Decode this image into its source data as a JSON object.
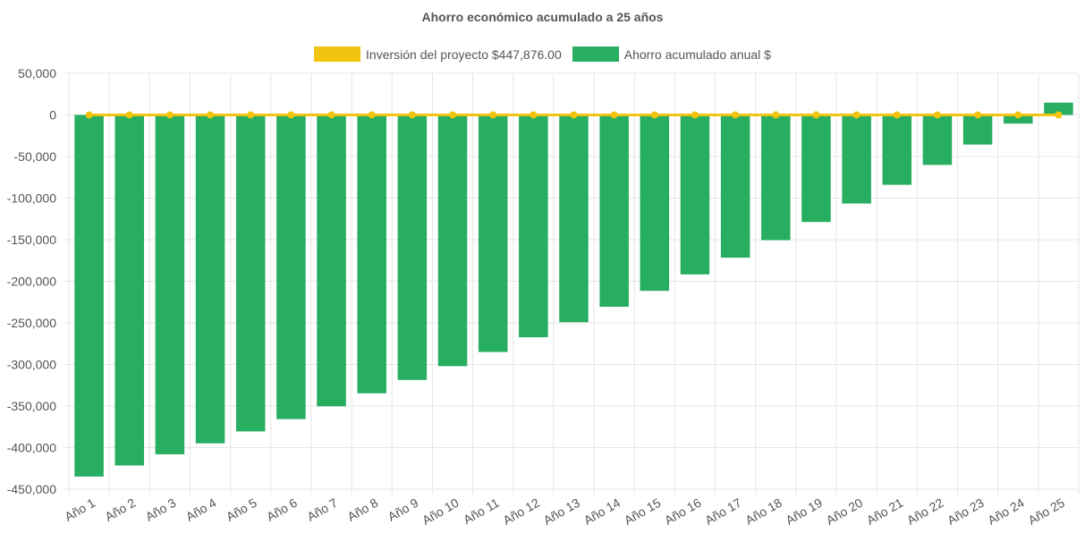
{
  "chart_data": {
    "type": "bar",
    "title": "Ahorro económico acumulado a 25 años",
    "categories": [
      "Año 1",
      "Año 2",
      "Año 3",
      "Año 4",
      "Año 5",
      "Año 6",
      "Año 7",
      "Año 8",
      "Año 9",
      "Año 10",
      "Año 11",
      "Año 12",
      "Año 13",
      "Año 14",
      "Año 15",
      "Año 16",
      "Año 17",
      "Año 18",
      "Año 19",
      "Año 20",
      "Año 21",
      "Año 22",
      "Año 23",
      "Año 24",
      "Año 25"
    ],
    "series": [
      {
        "name": "Inversión del proyecto $447,876.00",
        "type": "line",
        "color": "#f1c40f",
        "values": [
          0,
          0,
          0,
          0,
          0,
          0,
          0,
          0,
          0,
          0,
          0,
          0,
          0,
          0,
          0,
          0,
          0,
          0,
          0,
          0,
          0,
          0,
          0,
          0,
          0
        ]
      },
      {
        "name": "Ahorro acumulado anual $",
        "type": "bar",
        "color": "#27ae60",
        "values": [
          -434800,
          -421500,
          -408000,
          -394800,
          -380500,
          -365700,
          -350300,
          -334700,
          -318600,
          -302000,
          -285000,
          -267300,
          -249200,
          -230600,
          -211500,
          -191700,
          -171600,
          -150600,
          -128700,
          -106500,
          -84000,
          -60100,
          -35600,
          -10400,
          14800
        ]
      }
    ],
    "ylim": [
      -450000,
      50000
    ],
    "yticks": [
      50000,
      0,
      -50000,
      -100000,
      -150000,
      -200000,
      -250000,
      -300000,
      -350000,
      -400000,
      -450000
    ],
    "ytick_labels": [
      "50,000",
      "0",
      "-50,000",
      "-100,000",
      "-150,000",
      "-200,000",
      "-250,000",
      "-300,000",
      "-350,000",
      "-400,000",
      "-450,000"
    ],
    "xlabel": "",
    "ylabel": "",
    "grid": true,
    "legend_position": "top"
  }
}
